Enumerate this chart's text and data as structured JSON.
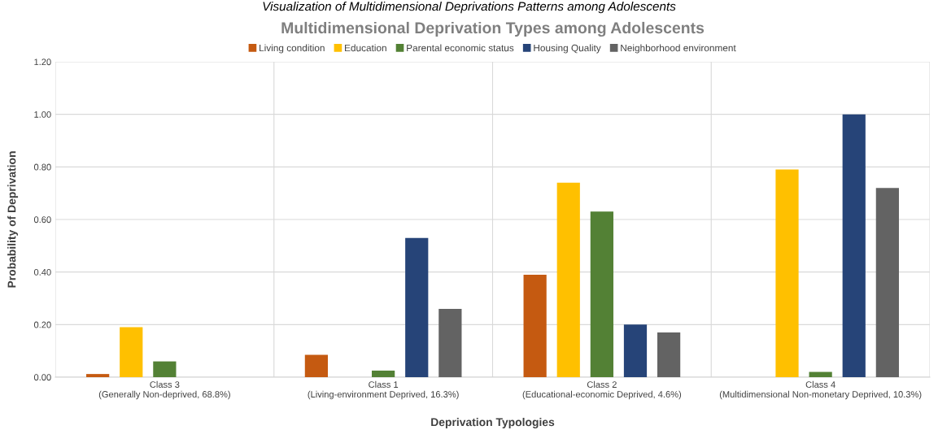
{
  "chart_data": {
    "type": "bar",
    "title": "Multidimensional Deprivation Types among Adolescents",
    "annotations": [
      "Visualization of Multidimensional Deprivations Patterns among Adolescents"
    ],
    "xlabel": "Deprivation Typologies",
    "ylabel": "Probability of Deprivation",
    "categories": [
      "Class 3\n(Generally Non-deprived, 68.8%)",
      "Class 1\n(Living-environment Deprived, 16.3%)",
      "Class 2\n(Educational-economic Deprived, 4.6%)",
      "Class 4\n(Multidimensional Non-monetary Deprived, 10.3%)"
    ],
    "series": [
      {
        "name": "Living condition",
        "color": "#c55a11",
        "values": [
          0.012,
          0.085,
          0.39,
          0
        ]
      },
      {
        "name": "Education",
        "color": "#ffc000",
        "values": [
          0.19,
          0,
          0.74,
          0.79
        ]
      },
      {
        "name": "Parental economic status",
        "color": "#538135",
        "values": [
          0.06,
          0.025,
          0.63,
          0.02
        ]
      },
      {
        "name": "Housing Quality",
        "color": "#264478",
        "values": [
          0,
          0.53,
          0.2,
          1.0
        ]
      },
      {
        "name": "Neighborhood environment",
        "color": "#636363",
        "values": [
          0,
          0.26,
          0.17,
          0.72
        ]
      }
    ],
    "ylim": [
      0,
      1.2
    ],
    "yticks": [
      {
        "value": 0,
        "label": "0.00"
      },
      {
        "value": 0.2,
        "label": "0.20"
      },
      {
        "value": 0.4,
        "label": "0.40"
      },
      {
        "value": 0.6,
        "label": "0.60"
      },
      {
        "value": 0.8,
        "label": "0.80"
      },
      {
        "value": 1.0,
        "label": "1.00"
      },
      {
        "value": 1.2,
        "label": "1.20"
      }
    ],
    "grid": true,
    "legend": "top"
  }
}
